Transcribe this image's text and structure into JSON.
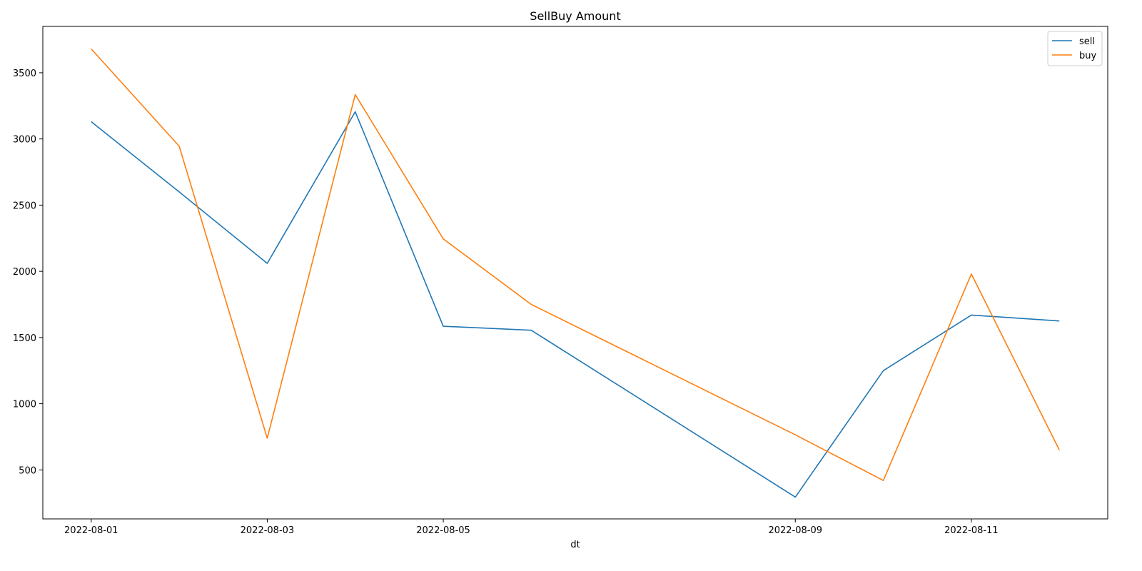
{
  "chart_data": {
    "type": "line",
    "title": "SellBuy Amount",
    "xlabel": "dt",
    "ylabel": "",
    "x": [
      "2022-08-01",
      "2022-08-02",
      "2022-08-03",
      "2022-08-04",
      "2022-08-05",
      "2022-08-06",
      "2022-08-09",
      "2022-08-10",
      "2022-08-11",
      "2022-08-12"
    ],
    "x_tick_labels": [
      "2022-08-01",
      "2022-08-03",
      "2022-08-05",
      "2022-08-09",
      "2022-08-11"
    ],
    "y_ticks": [
      500,
      1000,
      1500,
      2000,
      2500,
      3000,
      3500
    ],
    "ylim": [
      130,
      3850
    ],
    "series": [
      {
        "name": "sell",
        "color": "#1f77b4",
        "values": [
          3130,
          2600,
          2060,
          3205,
          1585,
          1555,
          295,
          1250,
          1670,
          1625
        ]
      },
      {
        "name": "buy",
        "color": "#ff7f0e",
        "values": [
          3680,
          2945,
          740,
          3335,
          2245,
          1750,
          765,
          420,
          1980,
          650
        ]
      }
    ],
    "grid": false,
    "legend_position": "top-right"
  }
}
